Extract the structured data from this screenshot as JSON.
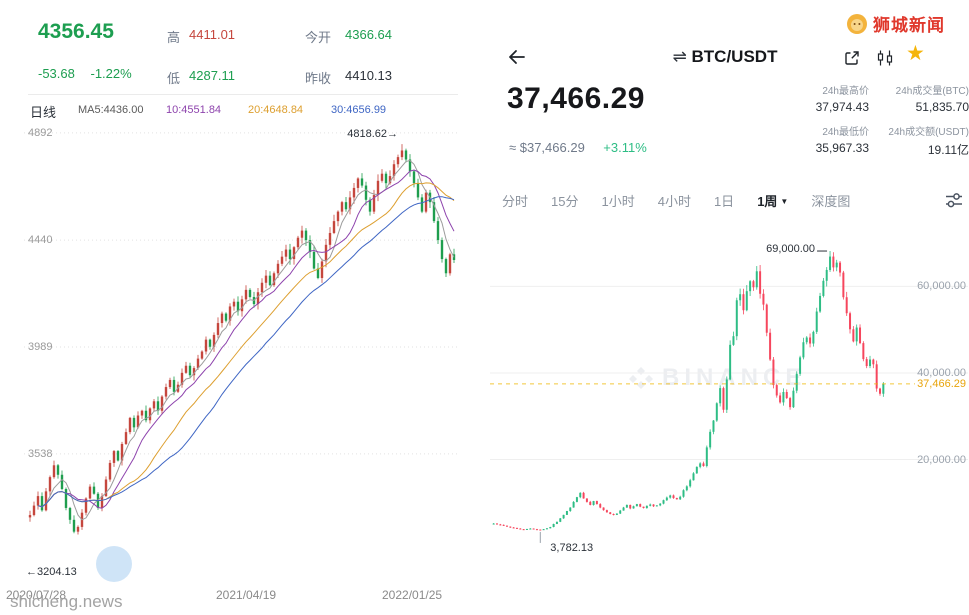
{
  "logo": {
    "text": "狮城新闻"
  },
  "site_watermark": "shicheng.news",
  "left": {
    "price": "4356.45",
    "change": "-53.68",
    "change_pct": "-1.22%",
    "high_label": "高",
    "high_value": "4411.01",
    "low_label": "低",
    "low_value": "4287.11",
    "open_label": "今开",
    "open_value": "4366.64",
    "prev_label": "昨收",
    "prev_value": "4410.13",
    "period": "日线",
    "ma5": "MA5:4436.00",
    "ma10": "10:4551.84",
    "ma20": "20:4648.84",
    "ma30": "30:4656.99",
    "peak_note": "4818.62→",
    "low_note": "←3204.13",
    "y_ticks": [
      "4892",
      "4440",
      "3989",
      "3538"
    ],
    "x_ticks": [
      "2020/07/28",
      "2021/04/19",
      "2022/01/25"
    ]
  },
  "right": {
    "swap_icon": "⇌",
    "pair": "BTC/USDT",
    "star_icon": "★",
    "price": "37,466.29",
    "approx": "≈ $37,466.29",
    "change_pct": "+3.11%",
    "stats": [
      {
        "label": "24h最高价",
        "value": "37,974.43"
      },
      {
        "label": "24h成交量(BTC)",
        "value": "51,835.70"
      },
      {
        "label": "24h最低价",
        "value": "35,967.33"
      },
      {
        "label": "24h成交额(USDT)",
        "value": "19.11亿"
      }
    ],
    "tabs": [
      "分时",
      "15分",
      "1小时",
      "4小时",
      "1日",
      "1周",
      "深度图"
    ],
    "active_tab": "1周",
    "caret": "▼",
    "y_ticks": [
      "60,000.00",
      "40,000.00",
      "20,000.00"
    ],
    "current_label": "37,466.29",
    "peak_note": "69,000.00",
    "low_note": "3,782.13",
    "watermark": "BINANCE"
  },
  "chart_data": [
    {
      "name": "index-daily-kline",
      "type": "candlestick",
      "period": "daily",
      "last_price": 4356.45,
      "change": -53.68,
      "change_pct": -1.22,
      "day_high": 4411.01,
      "day_low": 4287.11,
      "open": 4366.64,
      "prev_close": 4410.13,
      "ma_values": {
        "ma5": 4436.0,
        "ma10": 4551.84,
        "ma20": 4648.84,
        "ma30": 4656.99
      },
      "peak": 4818.62,
      "low": 3204.13,
      "ylim": [
        2985,
        4955
      ],
      "y_tick_values": [
        4892,
        4440,
        3989,
        3538
      ],
      "x_ticks": [
        "2020/07/28",
        "2021/04/19",
        "2022/01/25"
      ],
      "grid": true,
      "legend_position": "top",
      "closes": [
        3280,
        3320,
        3360,
        3300,
        3380,
        3440,
        3490,
        3450,
        3390,
        3310,
        3260,
        3210,
        3230,
        3290,
        3350,
        3400,
        3370,
        3310,
        3360,
        3430,
        3500,
        3550,
        3510,
        3580,
        3630,
        3690,
        3650,
        3700,
        3720,
        3680,
        3730,
        3760,
        3720,
        3780,
        3820,
        3850,
        3800,
        3830,
        3880,
        3910,
        3870,
        3900,
        3940,
        3970,
        4020,
        3990,
        4040,
        4090,
        4130,
        4100,
        4160,
        4180,
        4140,
        4190,
        4230,
        4200,
        4170,
        4220,
        4260,
        4290,
        4250,
        4300,
        4340,
        4370,
        4400,
        4360,
        4410,
        4450,
        4480,
        4440,
        4390,
        4320,
        4280,
        4350,
        4420,
        4470,
        4520,
        4560,
        4600,
        4570,
        4620,
        4660,
        4700,
        4670,
        4610,
        4560,
        4630,
        4690,
        4720,
        4680,
        4710,
        4760,
        4790,
        4818,
        4780,
        4730,
        4680,
        4620,
        4560,
        4640,
        4600,
        4520,
        4440,
        4360,
        4300,
        4380,
        4356
      ]
    },
    {
      "name": "btc-usdt-weekly-kline",
      "type": "candlestick",
      "period": "1W",
      "current_price": 37466.29,
      "change_pct": 3.11,
      "h24_high": 37974.43,
      "h24_low": 35967.33,
      "h24_volume_btc": 51835.7,
      "h24_turnover_usdt": "19.11亿",
      "peak": 69000.0,
      "low": 3782.13,
      "ylim": [
        -9000,
        73500
      ],
      "y_tick_values": [
        60000,
        40000,
        20000
      ],
      "grid": true,
      "legend_position": "none",
      "closes": [
        5200,
        5000,
        4900,
        4700,
        4500,
        4300,
        4200,
        4050,
        3900,
        3850,
        3950,
        4050,
        3900,
        3820,
        3782,
        3900,
        4100,
        4400,
        5100,
        5600,
        6400,
        7200,
        8100,
        8900,
        10200,
        11300,
        12300,
        11000,
        10200,
        9500,
        10400,
        9700,
        8900,
        8300,
        7800,
        7400,
        7200,
        7500,
        8200,
        8900,
        9500,
        8700,
        9200,
        9700,
        9100,
        8800,
        9300,
        9600,
        9200,
        9400,
        9800,
        10600,
        11200,
        11700,
        11100,
        10800,
        11400,
        12900,
        13800,
        15200,
        16800,
        18300,
        19100,
        18500,
        22800,
        26400,
        29000,
        33000,
        36500,
        31500,
        38500,
        46500,
        48500,
        56800,
        58200,
        54500,
        58900,
        61200,
        59800,
        63500,
        58300,
        55800,
        49300,
        43100,
        37200,
        34800,
        33200,
        35600,
        34200,
        32100,
        35900,
        39800,
        43600,
        47100,
        48200,
        46800,
        49500,
        54200,
        57800,
        61300,
        63800,
        66900,
        64400,
        65500,
        63200,
        57500,
        53800,
        50100,
        47300,
        50500,
        46900,
        43200,
        41600,
        43100,
        42000,
        36400,
        35200,
        37466
      ]
    }
  ]
}
